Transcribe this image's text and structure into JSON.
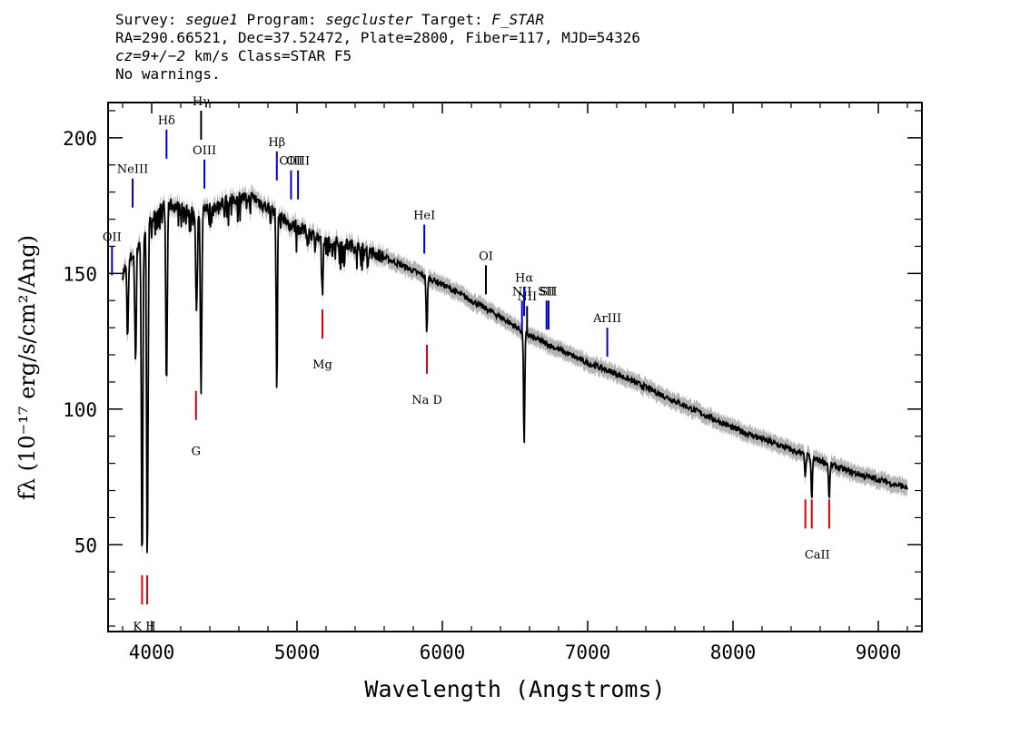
{
  "header": {
    "line1": {
      "survey_label": "Survey: ",
      "survey": "segue1",
      "program_label": " Program: ",
      "program": "segcluster",
      "target_label": " Target: ",
      "target": "F_STAR"
    },
    "line2": "RA=290.66521, Dec=37.52472, Plate=2800, Fiber=117, MJD=54326",
    "line3": {
      "cz": "cz=9+/−2",
      "rest": " km/s Class=STAR F5"
    },
    "line4": "No warnings."
  },
  "chart_data": {
    "type": "line",
    "xlabel": "Wavelength (Angstroms)",
    "ylabel": "fλ (10⁻¹⁷ erg/s/cm²/Ang)",
    "xlim": [
      3700,
      9300
    ],
    "ylim": [
      18,
      213
    ],
    "xticks": [
      4000,
      5000,
      6000,
      7000,
      8000,
      9000
    ],
    "yticks": [
      50,
      100,
      150,
      200
    ],
    "colors": {
      "flux": "#000000",
      "error": "#b5b5b5",
      "emission": "#0000cc",
      "absorption": "#dd0000"
    },
    "continuum": [
      [
        3800,
        150
      ],
      [
        3900,
        160
      ],
      [
        4000,
        170
      ],
      [
        4100,
        176
      ],
      [
        4200,
        174
      ],
      [
        4300,
        172
      ],
      [
        4400,
        174
      ],
      [
        4500,
        176
      ],
      [
        4600,
        178
      ],
      [
        4700,
        178
      ],
      [
        4800,
        174
      ],
      [
        4900,
        171
      ],
      [
        5000,
        167
      ],
      [
        5200,
        162
      ],
      [
        5400,
        160
      ],
      [
        5600,
        156
      ],
      [
        5800,
        151
      ],
      [
        6000,
        146
      ],
      [
        6200,
        140
      ],
      [
        6400,
        134
      ],
      [
        6600,
        127
      ],
      [
        6800,
        122
      ],
      [
        7000,
        117
      ],
      [
        7200,
        113
      ],
      [
        7400,
        108
      ],
      [
        7600,
        103
      ],
      [
        7800,
        98
      ],
      [
        8000,
        93
      ],
      [
        8200,
        89
      ],
      [
        8400,
        85
      ],
      [
        8600,
        81
      ],
      [
        8800,
        77
      ],
      [
        9000,
        74
      ],
      [
        9200,
        71
      ]
    ],
    "absorption_dips": [
      {
        "x": 3835,
        "y": 128
      },
      {
        "x": 3889,
        "y": 118
      },
      {
        "x": 3934,
        "y": 40
      },
      {
        "x": 3970,
        "y": 46
      },
      {
        "x": 4102,
        "y": 106
      },
      {
        "x": 4308,
        "y": 135
      },
      {
        "x": 4340,
        "y": 104
      },
      {
        "x": 4861,
        "y": 105
      },
      {
        "x": 5175,
        "y": 139
      },
      {
        "x": 5893,
        "y": 127
      },
      {
        "x": 6563,
        "y": 87
      },
      {
        "x": 8498,
        "y": 75
      },
      {
        "x": 8542,
        "y": 66
      },
      {
        "x": 8662,
        "y": 66
      }
    ],
    "emission_lines": [
      {
        "label": "OII",
        "x": 3727,
        "y": 160,
        "color": "#0000cc"
      },
      {
        "label": "NeIII",
        "x": 3869,
        "y": 185,
        "color": "#0000cc"
      },
      {
        "label": "Hδ",
        "x": 4102,
        "y": 203,
        "color": "#0000cc"
      },
      {
        "label": "Hγ",
        "x": 4340,
        "y": 210,
        "color": "#000000"
      },
      {
        "label": "OIII",
        "x": 4363,
        "y": 192,
        "color": "#0000cc"
      },
      {
        "label": "Hβ",
        "x": 4861,
        "y": 195,
        "color": "#0000cc"
      },
      {
        "label": "OIII",
        "x": 4959,
        "y": 188,
        "color": "#0000cc"
      },
      {
        "label": "OIII",
        "x": 5007,
        "y": 188,
        "color": "#0000cc"
      },
      {
        "label": "HeI",
        "x": 5876,
        "y": 168,
        "color": "#0000cc"
      },
      {
        "label": "OI",
        "x": 6300,
        "y": 153,
        "color": "#000000"
      },
      {
        "label": "NII",
        "x": 6548,
        "y": 140,
        "color": "#0000cc"
      },
      {
        "label": "Hα",
        "x": 6563,
        "y": 145,
        "color": "#0000cc"
      },
      {
        "label": "NII",
        "x": 6583,
        "y": 138,
        "color": "#000000"
      },
      {
        "label": "SII",
        "x": 6717,
        "y": 140,
        "color": "#0000cc"
      },
      {
        "label": "SII",
        "x": 6731,
        "y": 140,
        "color": "#0000cc"
      },
      {
        "label": "ArIII",
        "x": 7135,
        "y": 130,
        "color": "#0000cc"
      }
    ],
    "absorption_lines": [
      {
        "label": "K",
        "x": 3934,
        "y": 28,
        "color": "#dd0000"
      },
      {
        "label": "H",
        "x": 3969,
        "y": 28,
        "color": "#dd0000"
      },
      {
        "label": "G",
        "x": 4305,
        "y": 96,
        "color": "#dd0000"
      },
      {
        "label": "Mg",
        "x": 5175,
        "y": 126,
        "color": "#dd0000"
      },
      {
        "label": "Na",
        "x": 5894,
        "y": 113,
        "color": "#dd0000"
      },
      {
        "label": "CaII",
        "x": 8498,
        "y": 56,
        "color": "#dd0000"
      },
      {
        "label": "CaII",
        "x": 8542,
        "y": 56,
        "color": "#dd0000"
      },
      {
        "label": "CaII",
        "x": 8662,
        "y": 56,
        "color": "#dd0000"
      }
    ],
    "absorption_texts": [
      {
        "text": "K H",
        "x": 3950,
        "y": 18.5
      },
      {
        "text": "G",
        "x": 4305,
        "y": 83
      },
      {
        "text": "Mg",
        "x": 5175,
        "y": 115
      },
      {
        "text": "Na  D",
        "x": 5894,
        "y": 102
      },
      {
        "text": "CaII",
        "x": 8580,
        "y": 45
      }
    ]
  }
}
